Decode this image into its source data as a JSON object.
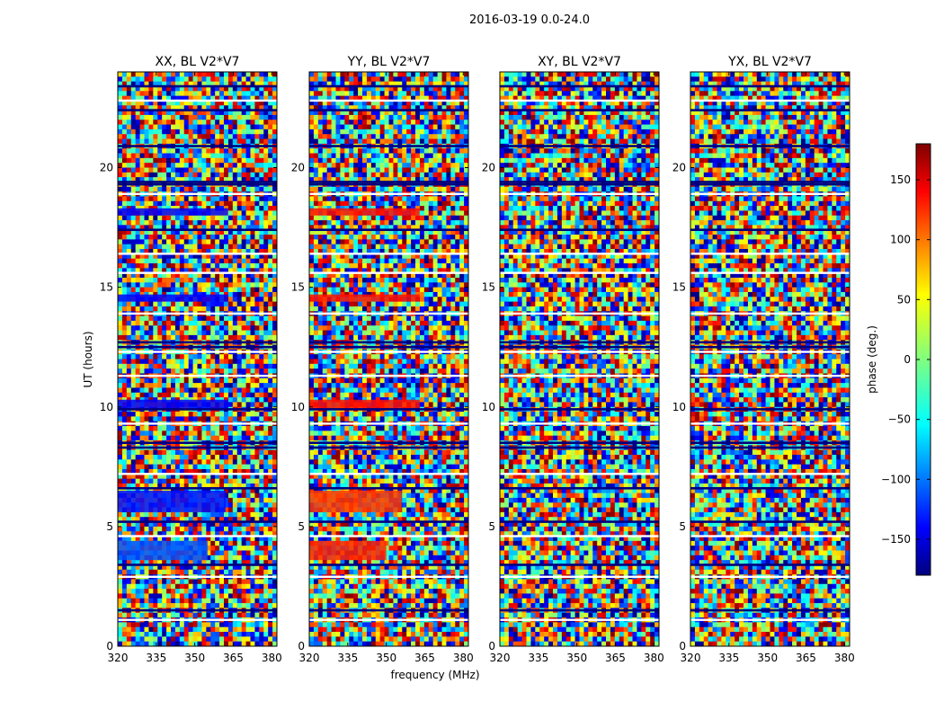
{
  "chart_data": {
    "type": "heatmap",
    "title": "2016-03-19 0.0-24.0",
    "xlabel": "frequency (MHz)",
    "ylabel": "UT (hours)",
    "xlim": [
      320,
      382
    ],
    "ylim": [
      0,
      24
    ],
    "x_ticks": [
      "320",
      "335",
      "350",
      "365",
      "380"
    ],
    "y_ticks": [
      "0",
      "5",
      "10",
      "15",
      "20"
    ],
    "panels": [
      {
        "title": "XX, BL V2*V7"
      },
      {
        "title": "YY, BL V2*V7"
      },
      {
        "title": "XY, BL V2*V7"
      },
      {
        "title": "YX, BL V2*V7"
      }
    ],
    "colorbar": {
      "label": "phase (deg.)",
      "colormap": "jet",
      "range": [
        -180,
        180
      ],
      "ticks": [
        "150",
        "100",
        "50",
        "0",
        "−50",
        "−100",
        "−150"
      ]
    },
    "grid": false,
    "legend": "none"
  }
}
